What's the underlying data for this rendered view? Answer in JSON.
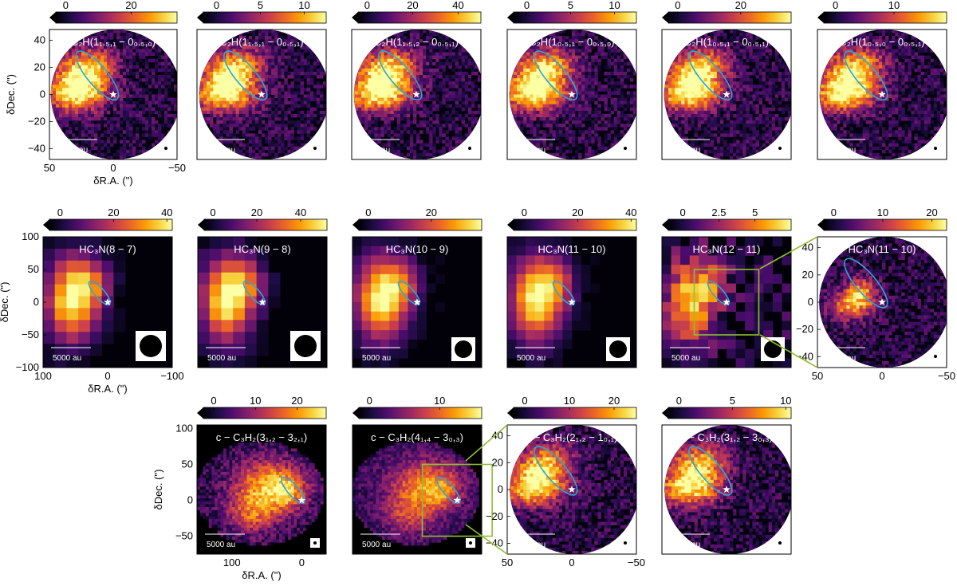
{
  "figure": {
    "colormap": [
      "#000004",
      "#1b0c41",
      "#4a0c6b",
      "#781c6d",
      "#a52c60",
      "#cf4446",
      "#ed6925",
      "#fb9b06",
      "#f7d13d",
      "#fcffa4"
    ],
    "beam_fill": "#000000",
    "ellipse_color": "#29a8d6",
    "zoom_box_color": "#8fbf30",
    "star_color": "#ffffff",
    "scalebar_label": "5000 au",
    "xlabel": "δR.A. (\")",
    "ylabel": "δDec. (\")"
  },
  "chart_data": [
    {
      "id": "p1",
      "type": "heatmap",
      "title": "C₂H(1₁.₅,₁ − 0₀.₅,₀)",
      "molecule": "C2H",
      "colorbar_ticks": [
        "0",
        "20"
      ],
      "color_range": [
        -3,
        34
      ],
      "xlim": [
        50,
        -50
      ],
      "ylim": [
        -48,
        48
      ],
      "xticks": [
        "50",
        "0",
        "−50"
      ],
      "yticks": [
        "40",
        "20",
        "0",
        "−20",
        "−40"
      ],
      "xlabel": "δR.A. (\")",
      "ylabel": "δDec. (\")",
      "field": "circle",
      "beam": "small"
    },
    {
      "id": "p2",
      "type": "heatmap",
      "title": "C₂H(1₁.₅,₁ − 0₀.₅,₁)",
      "molecule": "C2H",
      "colorbar_ticks": [
        "0",
        "5",
        "10"
      ],
      "color_range": [
        -1.5,
        12.5
      ],
      "xlim": [
        50,
        -50
      ],
      "ylim": [
        -48,
        48
      ],
      "field": "circle",
      "beam": "small"
    },
    {
      "id": "p3",
      "type": "heatmap",
      "title": "C₂H(1₁.₅,₂ − 0₀.₅,₁)",
      "molecule": "C2H",
      "colorbar_ticks": [
        "0",
        "20",
        "40"
      ],
      "color_range": [
        -4,
        50
      ],
      "xlim": [
        50,
        -50
      ],
      "ylim": [
        -48,
        48
      ],
      "field": "circle",
      "beam": "small"
    },
    {
      "id": "p4",
      "type": "heatmap",
      "title": "C₂H(1₀.₅,₁ − 0₀.₅,₀)",
      "molecule": "C2H",
      "colorbar_ticks": [
        "0",
        "5",
        "10"
      ],
      "color_range": [
        -1.5,
        12.5
      ],
      "xlim": [
        50,
        -50
      ],
      "ylim": [
        -48,
        48
      ],
      "field": "circle",
      "beam": "small"
    },
    {
      "id": "p5",
      "type": "heatmap",
      "title": "C₂H(1₀.₅,₁ − 0₀.₅,₁)",
      "molecule": "C2H",
      "colorbar_ticks": [
        "0",
        "20"
      ],
      "color_range": [
        -3,
        36
      ],
      "xlim": [
        50,
        -50
      ],
      "ylim": [
        -48,
        48
      ],
      "field": "circle",
      "beam": "small"
    },
    {
      "id": "p6",
      "type": "heatmap",
      "title": "C₂H(1₀.₅,₀ − 0₀.₅,₁)",
      "molecule": "C2H",
      "colorbar_ticks": [
        "0",
        "10"
      ],
      "color_range": [
        -2,
        19
      ],
      "xlim": [
        50,
        -50
      ],
      "ylim": [
        -48,
        48
      ],
      "field": "circle",
      "beam": "small"
    },
    {
      "id": "p7",
      "type": "heatmap",
      "title": "HC₃N(8 − 7)",
      "molecule": "HC3N",
      "colorbar_ticks": [
        "0",
        "20",
        "40"
      ],
      "color_range": [
        -4,
        42
      ],
      "xlim": [
        100,
        -100
      ],
      "ylim": [
        -100,
        100
      ],
      "xticks": [
        "100",
        "0",
        "−100"
      ],
      "yticks": [
        "100",
        "50",
        "0",
        "−50",
        "−100"
      ],
      "xlabel": "δR.A. (\")",
      "ylabel": "δDec. (\")",
      "field": "square",
      "beam": "large"
    },
    {
      "id": "p8",
      "type": "heatmap",
      "title": "HC₃N(9 − 8)",
      "molecule": "HC3N",
      "colorbar_ticks": [
        "0",
        "20",
        "40"
      ],
      "color_range": [
        -4,
        52
      ],
      "xlim": [
        100,
        -100
      ],
      "ylim": [
        -100,
        100
      ],
      "field": "square",
      "beam": "large"
    },
    {
      "id": "p9",
      "type": "heatmap",
      "title": "HC₃N(10 − 9)",
      "molecule": "HC3N",
      "colorbar_ticks": [
        "0",
        "20"
      ],
      "color_range": [
        -3,
        36
      ],
      "xlim": [
        100,
        -100
      ],
      "ylim": [
        -100,
        100
      ],
      "field": "square",
      "beam": "medium"
    },
    {
      "id": "p10",
      "type": "heatmap",
      "title": "HC₃N(11 − 10)",
      "molecule": "HC3N",
      "colorbar_ticks": [
        "0",
        "20",
        "40"
      ],
      "color_range": [
        -4,
        42
      ],
      "xlim": [
        100,
        -100
      ],
      "ylim": [
        -100,
        100
      ],
      "field": "square",
      "beam": "medium"
    },
    {
      "id": "p11",
      "type": "heatmap",
      "title": "HC₃N(12 − 11)",
      "molecule": "HC3N",
      "colorbar_ticks": [
        "0",
        "2.5",
        "5"
      ],
      "color_range": [
        -1,
        7.5
      ],
      "xlim": [
        100,
        -100
      ],
      "ylim": [
        -100,
        100
      ],
      "field": "square",
      "beam": "medium",
      "zoom_box": [
        50,
        -50,
        50,
        -50
      ]
    },
    {
      "id": "p12",
      "type": "heatmap",
      "title": "HC₃N(11 − 10)",
      "molecule": "HC3N",
      "colorbar_ticks": [
        "0",
        "10",
        "20"
      ],
      "color_range": [
        -2,
        23
      ],
      "xlim": [
        50,
        -50
      ],
      "ylim": [
        -48,
        48
      ],
      "xticks": [
        "50",
        "0",
        "−50"
      ],
      "yticks": [
        "40",
        "20",
        "0",
        "−20",
        "−40"
      ],
      "field": "circle",
      "beam": "small"
    },
    {
      "id": "p13",
      "type": "heatmap",
      "title": "c − C₃H₂(3₁,₂ − 3₂,₁)",
      "molecule": "c-C3H2",
      "colorbar_ticks": [
        "0",
        "10",
        "20"
      ],
      "color_range": [
        -2.5,
        27
      ],
      "xlim": [
        150,
        -35
      ],
      "ylim": [
        -75,
        105
      ],
      "xticks": [
        "100",
        "0"
      ],
      "yticks": [
        "100",
        "50",
        "0",
        "−50"
      ],
      "xlabel": "δR.A. (\")",
      "ylabel": "δDec. (\")",
      "field": "blob",
      "beam": "small"
    },
    {
      "id": "p14",
      "type": "heatmap",
      "title": "c − C₃H₂(4₁,₄ − 3₀,₃)",
      "molecule": "c-C3H2",
      "colorbar_ticks": [
        "0",
        "10"
      ],
      "color_range": [
        -1.5,
        16
      ],
      "xlim": [
        150,
        -35
      ],
      "ylim": [
        -75,
        105
      ],
      "field": "blob",
      "beam": "small",
      "zoom_box": [
        50,
        -50,
        50,
        -50
      ]
    },
    {
      "id": "p15",
      "type": "heatmap",
      "title": "c − C₃H₂(2₁,₂ − 1₀,₁)",
      "molecule": "c-C3H2",
      "colorbar_ticks": [
        "0",
        "10",
        "20"
      ],
      "color_range": [
        -2.5,
        25
      ],
      "xlim": [
        50,
        -50
      ],
      "ylim": [
        -48,
        48
      ],
      "xticks": [
        "50",
        "0",
        "−50"
      ],
      "yticks": [
        "40",
        "20",
        "0",
        "−20",
        "−40"
      ],
      "field": "circle",
      "beam": "small"
    },
    {
      "id": "p16",
      "type": "heatmap",
      "title": "c − C₃H₂(3₁,₂ − 3₀,₃)",
      "molecule": "c-C3H2",
      "colorbar_ticks": [
        "0",
        "5",
        "10"
      ],
      "color_range": [
        -1,
        10.5
      ],
      "xlim": [
        50,
        -50
      ],
      "ylim": [
        -48,
        48
      ],
      "field": "circle",
      "beam": "small"
    }
  ]
}
